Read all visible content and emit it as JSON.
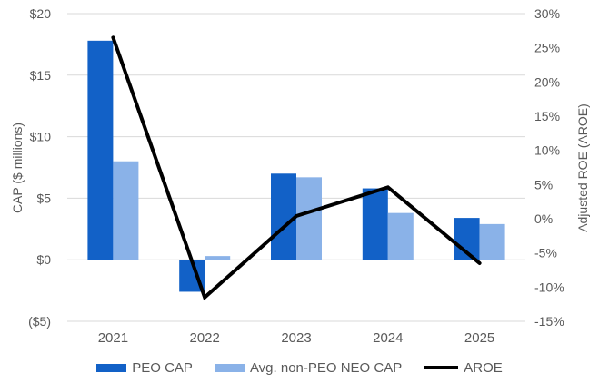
{
  "chart_data": {
    "type": "combo",
    "title": "",
    "categories": [
      "2021",
      "2022",
      "2023",
      "2024",
      "2025"
    ],
    "series": [
      {
        "name": "PEO CAP",
        "type": "bar",
        "axis": "left",
        "color": "#1261C7",
        "values": [
          17.8,
          -2.6,
          7.0,
          5.8,
          3.4
        ]
      },
      {
        "name": "Avg. non-PEO NEO CAP",
        "type": "bar",
        "axis": "left",
        "color": "#8AB2E8",
        "values": [
          8.0,
          0.3,
          6.7,
          3.8,
          2.9
        ]
      },
      {
        "name": "AROE",
        "type": "line",
        "axis": "right",
        "color": "#000000",
        "values": [
          26.5,
          -11.5,
          0.4,
          4.6,
          -6.5
        ]
      }
    ],
    "left_axis": {
      "title": "CAP ($ millions)",
      "tick_labels": [
        "$20",
        "$15",
        "$10",
        "$5",
        "$0",
        "($5)"
      ],
      "tick_values": [
        20,
        15,
        10,
        5,
        0,
        -5
      ],
      "range": [
        -5,
        20
      ]
    },
    "right_axis": {
      "title": "Adjusted ROE (AROE)",
      "tick_labels": [
        "30%",
        "25%",
        "20%",
        "15%",
        "10%",
        "5%",
        "0%",
        "-5%",
        "-10%",
        "-15%"
      ],
      "tick_values": [
        30,
        25,
        20,
        15,
        10,
        5,
        0,
        -5,
        -10,
        -15
      ],
      "range": [
        -15,
        30
      ]
    },
    "legend": {
      "position": "bottom",
      "entries": [
        "PEO CAP",
        "Avg. non-PEO NEO CAP",
        "AROE"
      ]
    },
    "grid": {
      "show": true,
      "color": "#D9D9D9"
    },
    "text_color": "#595959",
    "background": "#FFFFFF"
  }
}
